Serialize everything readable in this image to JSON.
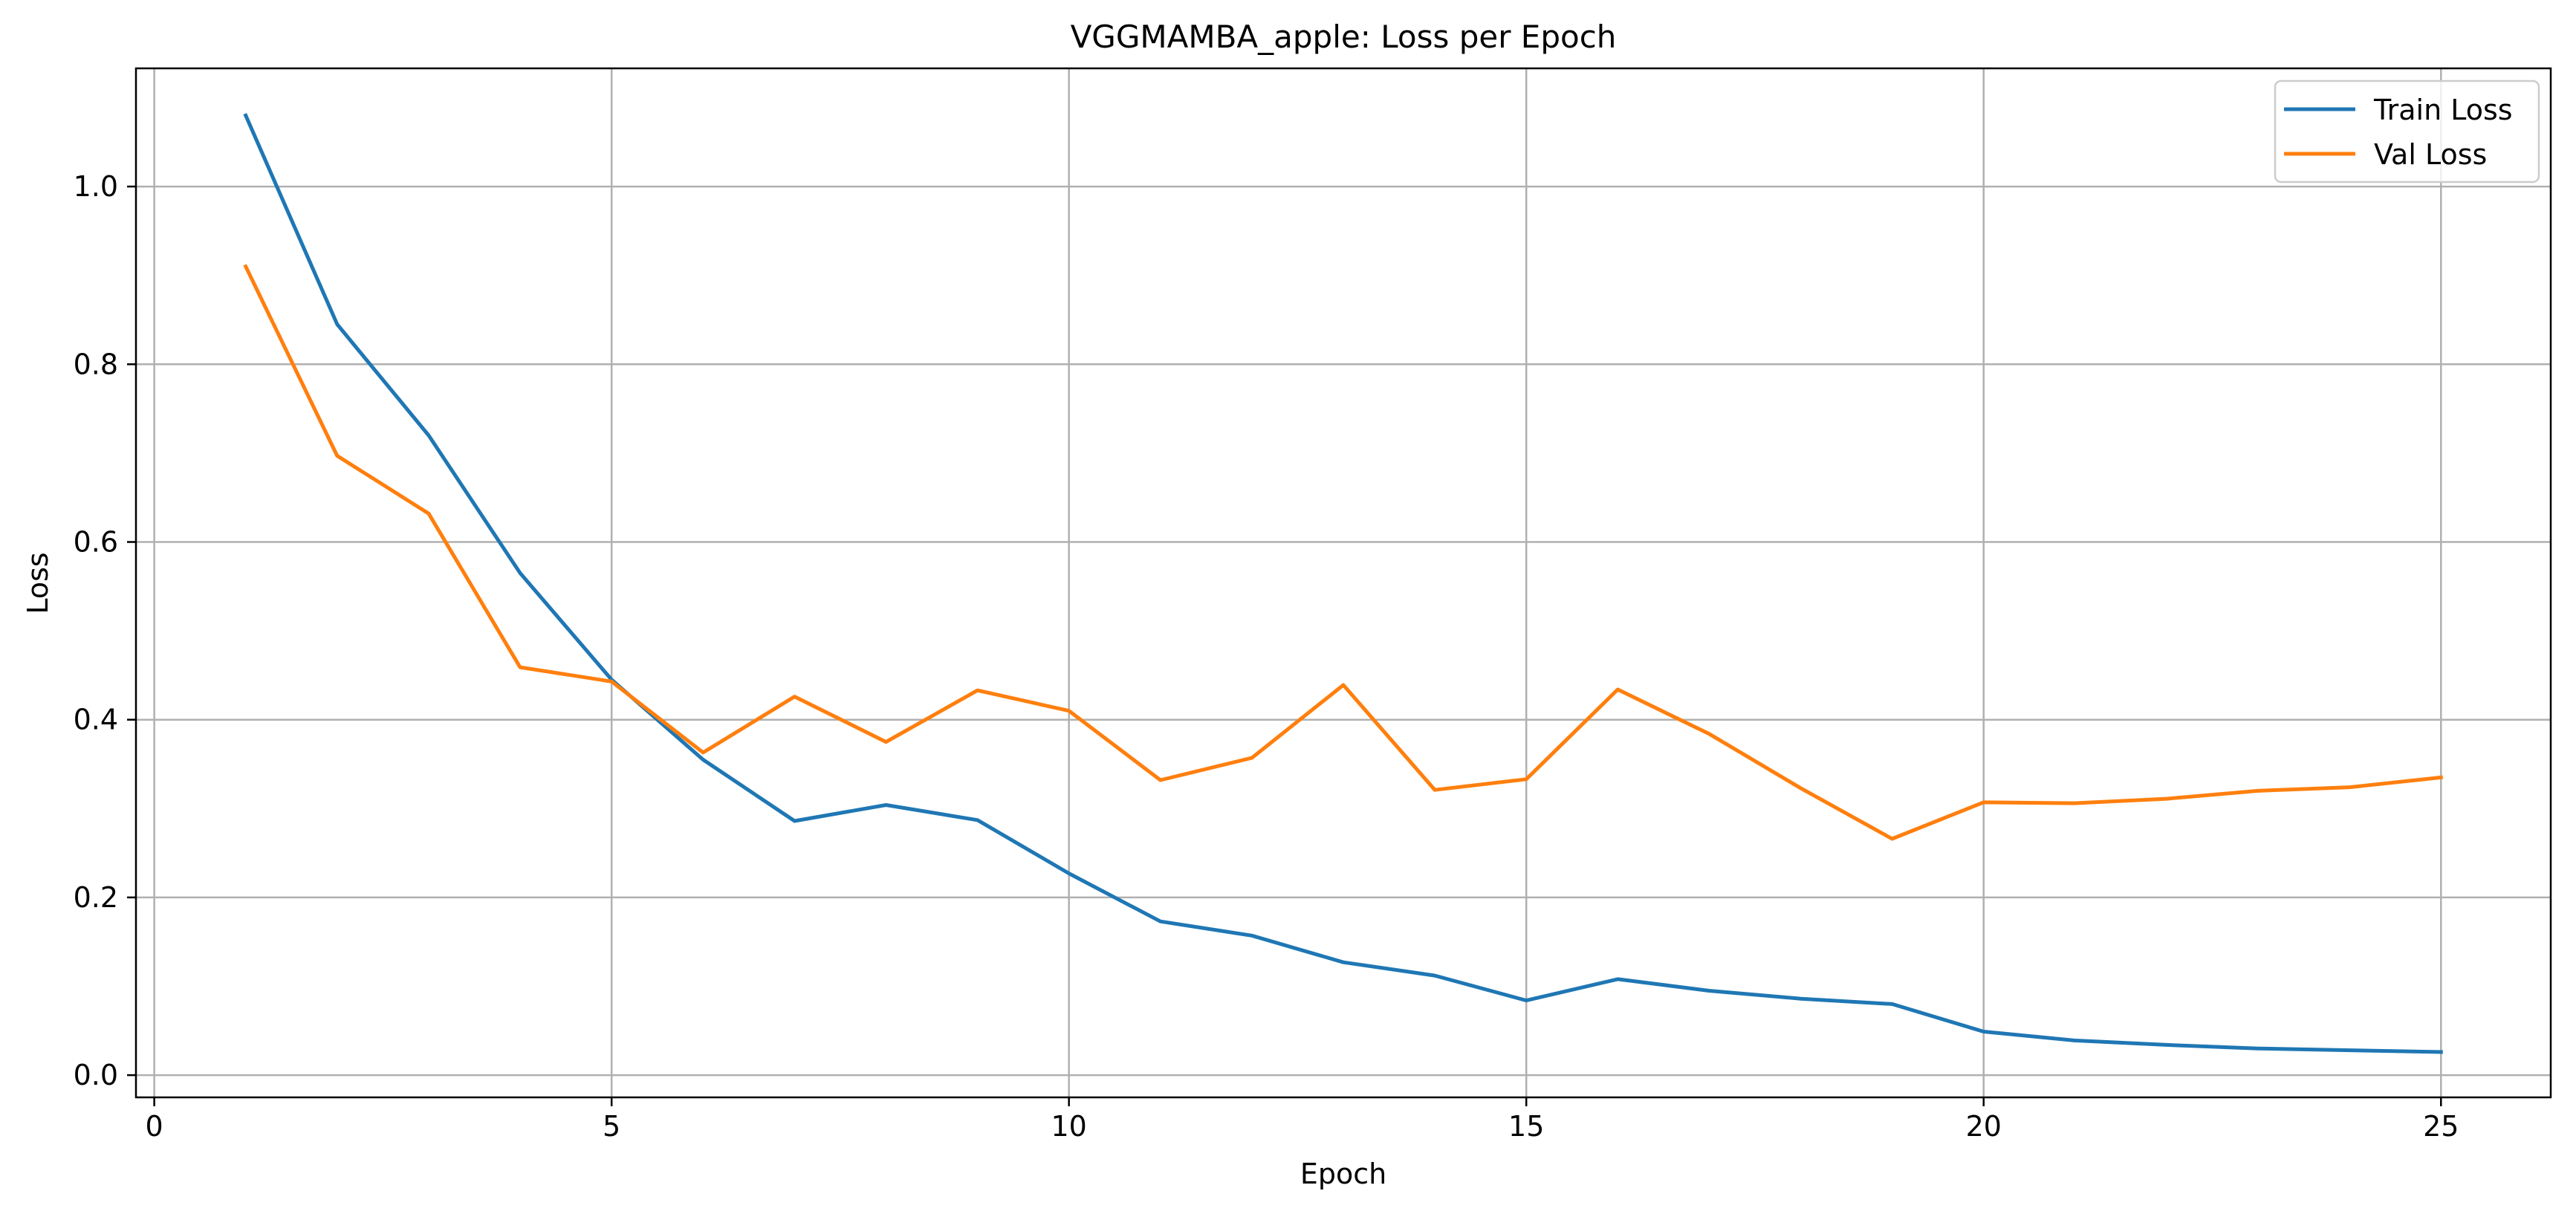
{
  "chart_data": {
    "type": "line",
    "title": "VGGMAMBA_apple: Loss per Epoch",
    "xlabel": "Epoch",
    "ylabel": "Loss",
    "xlim": [
      -0.2,
      26.2
    ],
    "ylim": [
      -0.025,
      1.133
    ],
    "xticks": [
      0,
      5,
      10,
      15,
      20,
      25
    ],
    "yticks": [
      0.0,
      0.2,
      0.4,
      0.6,
      0.8,
      1.0
    ],
    "xtick_labels": [
      "0",
      "5",
      "10",
      "15",
      "20",
      "25"
    ],
    "ytick_labels": [
      "0.0",
      "0.2",
      "0.4",
      "0.6",
      "0.8",
      "1.0"
    ],
    "grid": true,
    "legend_position": "top-right",
    "x": [
      1,
      2,
      3,
      4,
      5,
      6,
      7,
      8,
      9,
      10,
      11,
      12,
      13,
      14,
      15,
      16,
      17,
      18,
      19,
      20,
      21,
      22,
      23,
      24,
      25
    ],
    "series": [
      {
        "name": "Train Loss",
        "color": "#1f77b4",
        "values": [
          1.08,
          0.845,
          0.72,
          0.565,
          0.445,
          0.355,
          0.286,
          0.304,
          0.287,
          0.227,
          0.173,
          0.157,
          0.127,
          0.112,
          0.084,
          0.108,
          0.095,
          0.086,
          0.08,
          0.049,
          0.039,
          0.034,
          0.03,
          0.028,
          0.026
        ]
      },
      {
        "name": "Val Loss",
        "color": "#ff7f0e",
        "values": [
          0.91,
          0.697,
          0.632,
          0.459,
          0.443,
          0.363,
          0.426,
          0.375,
          0.433,
          0.41,
          0.332,
          0.357,
          0.439,
          0.321,
          0.333,
          0.434,
          0.384,
          0.323,
          0.266,
          0.307,
          0.306,
          0.311,
          0.32,
          0.324,
          0.335
        ]
      }
    ]
  }
}
